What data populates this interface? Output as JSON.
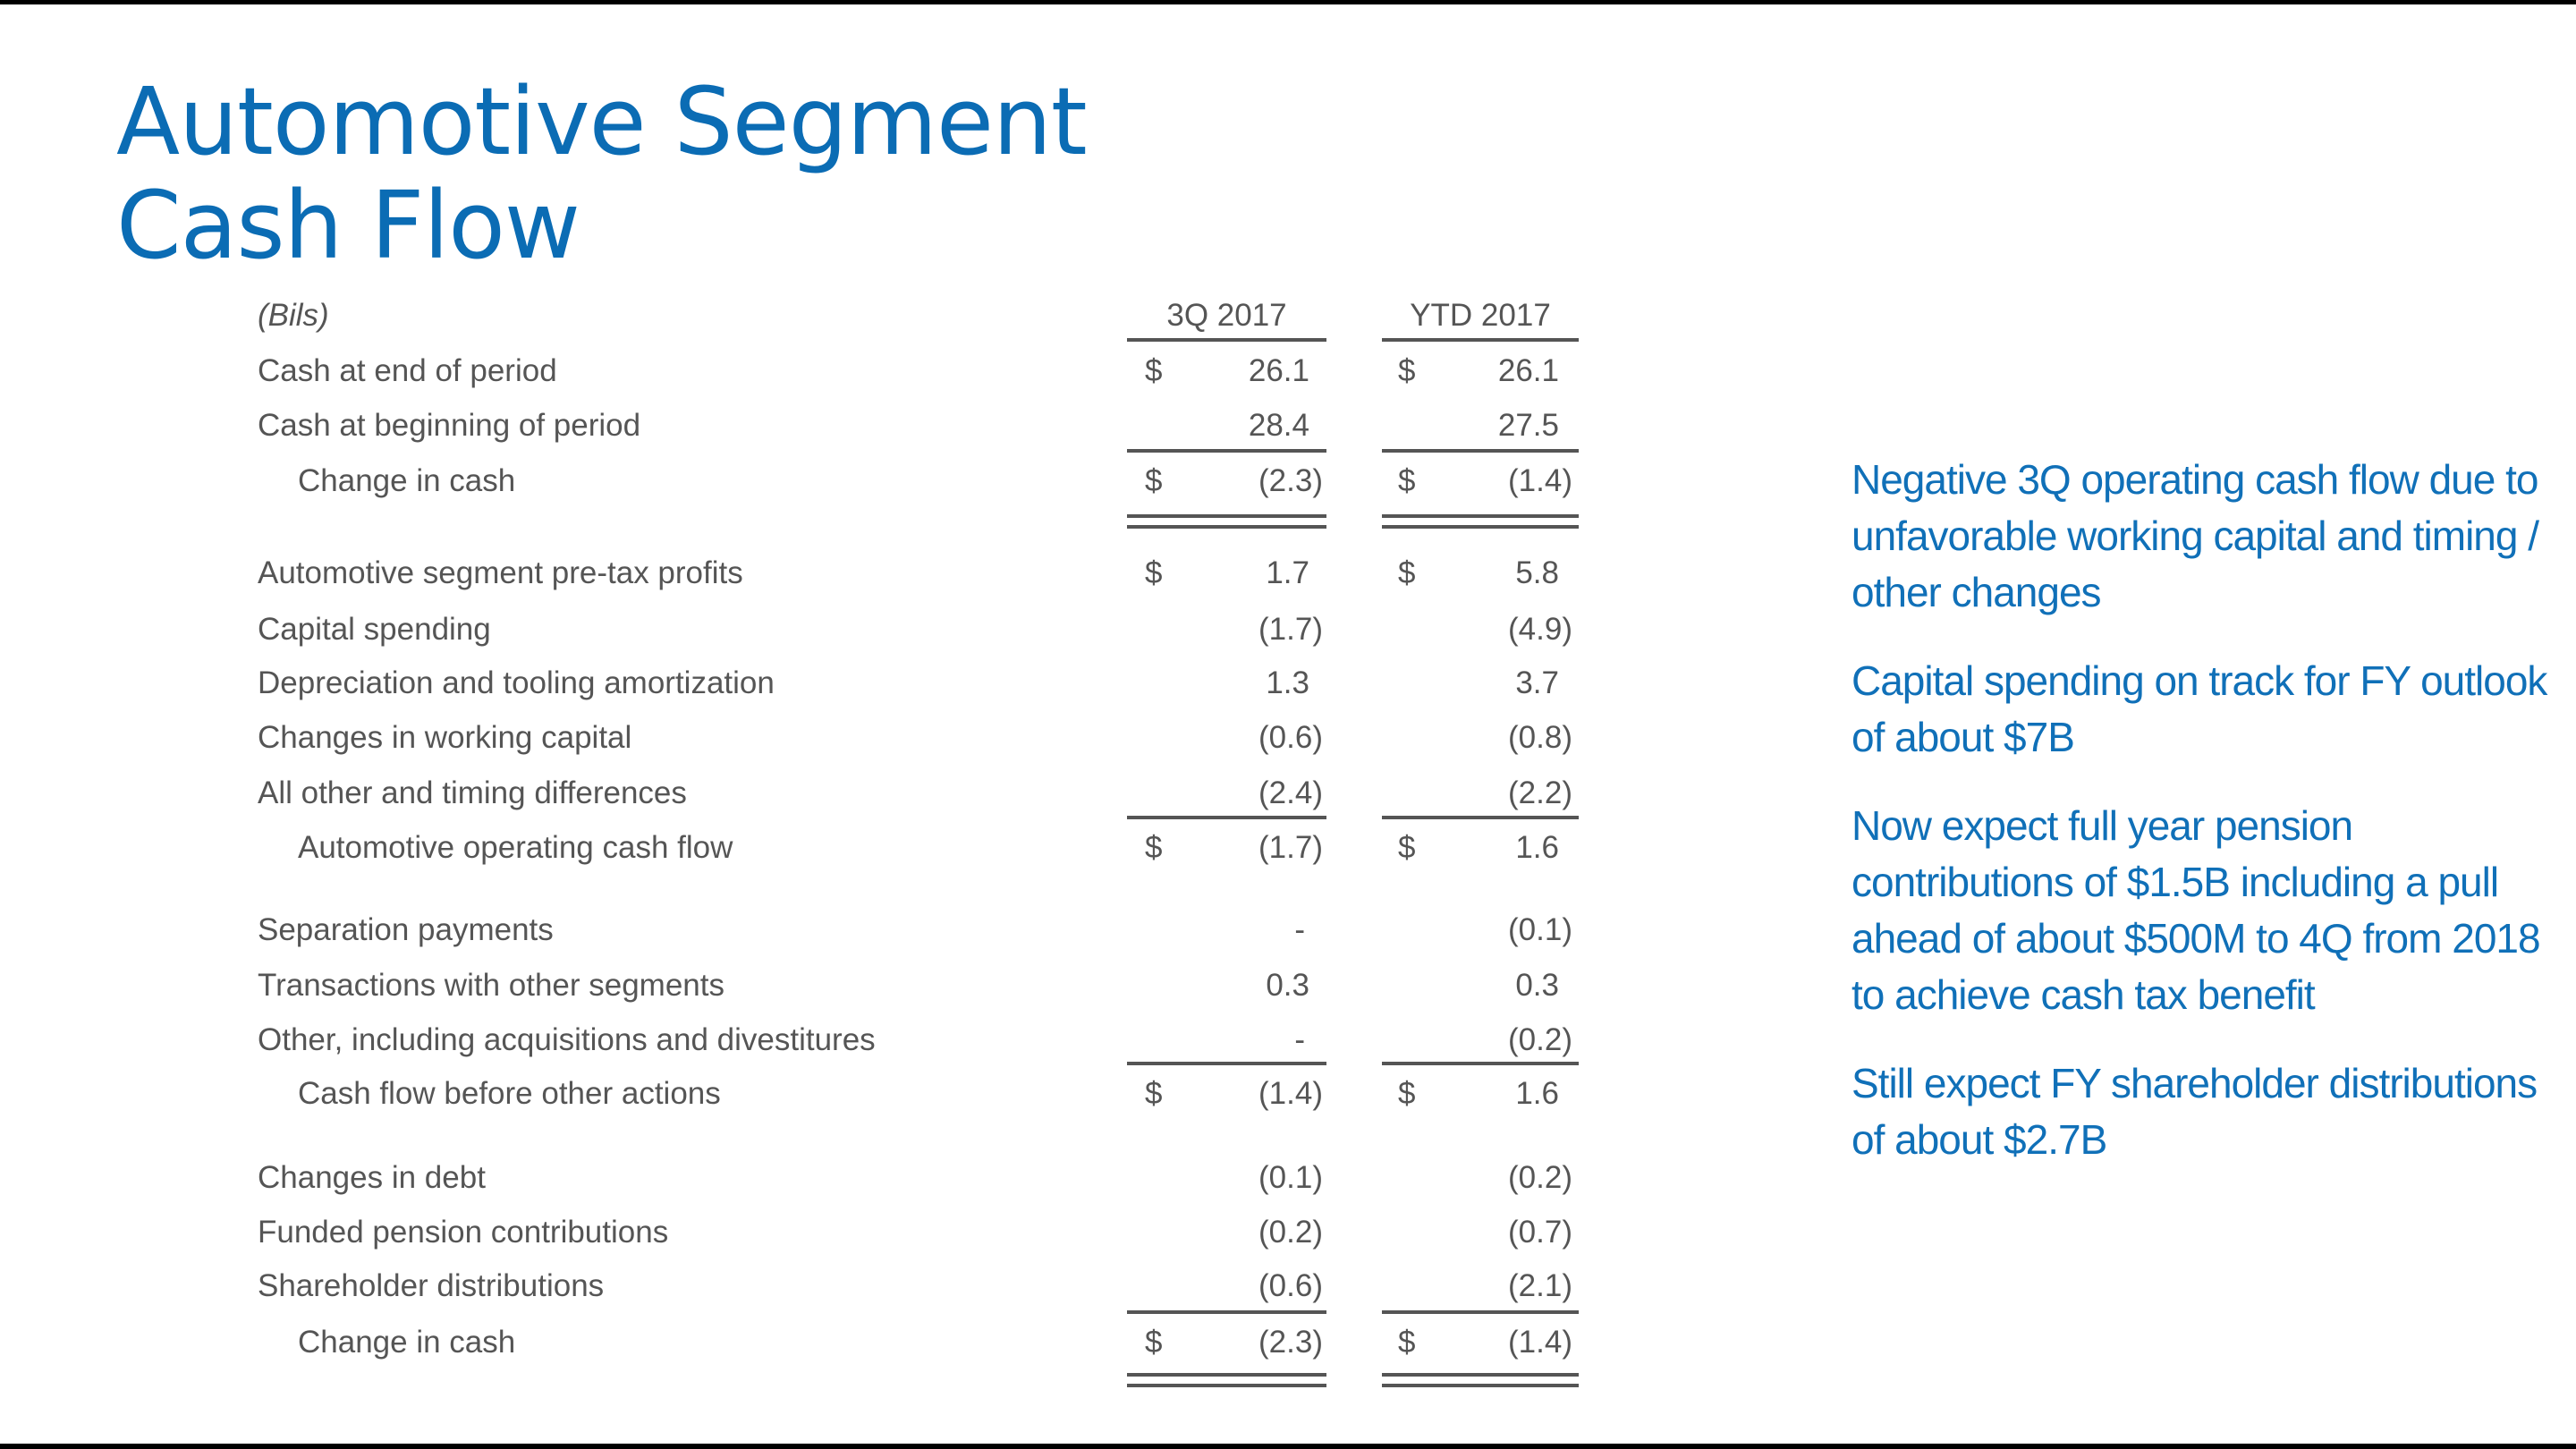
{
  "title_lines": [
    "Automotive Segment",
    "Cash Flow"
  ],
  "table": {
    "unit_label": "(Bils)",
    "columns": [
      "3Q 2017",
      "YTD 2017"
    ],
    "rows": [
      {
        "label": "Cash at end of period",
        "dollar": true,
        "values": [
          "26.1",
          "26.1"
        ]
      },
      {
        "label": "Cash at beginning of period",
        "dollar": false,
        "values": [
          "28.4",
          "27.5"
        ]
      },
      {
        "label": "Change in cash",
        "indent": true,
        "dollar": true,
        "values": [
          "(2.3)",
          "(1.4)"
        ]
      },
      {
        "label": "Automotive segment pre-tax profits",
        "dollar": true,
        "values": [
          "1.7",
          "5.8"
        ]
      },
      {
        "label": "Capital spending",
        "dollar": false,
        "values": [
          "(1.7)",
          "(4.9)"
        ]
      },
      {
        "label": "Depreciation and tooling amortization",
        "dollar": false,
        "values": [
          "1.3",
          "3.7"
        ]
      },
      {
        "label": "Changes in working capital",
        "dollar": false,
        "values": [
          "(0.6)",
          "(0.8)"
        ]
      },
      {
        "label": "All other and timing differences",
        "dollar": false,
        "values": [
          "(2.4)",
          "(2.2)"
        ]
      },
      {
        "label": "Automotive operating cash flow",
        "indent": true,
        "dollar": true,
        "values": [
          "(1.7)",
          "1.6"
        ]
      },
      {
        "label": "Separation payments",
        "dollar": false,
        "values": [
          "-",
          "(0.1)"
        ]
      },
      {
        "label": "Transactions with other segments",
        "dollar": false,
        "values": [
          "0.3",
          "0.3"
        ]
      },
      {
        "label": "Other, including acquisitions and divestitures",
        "dollar": false,
        "values": [
          "-",
          "(0.2)"
        ]
      },
      {
        "label": "Cash flow before other actions",
        "indent": true,
        "dollar": true,
        "values": [
          "(1.4)",
          "1.6"
        ]
      },
      {
        "label": "Changes in debt",
        "dollar": false,
        "values": [
          "(0.1)",
          "(0.2)"
        ]
      },
      {
        "label": "Funded pension contributions",
        "dollar": false,
        "values": [
          "(0.2)",
          "(0.7)"
        ]
      },
      {
        "label": "Shareholder distributions",
        "dollar": false,
        "values": [
          "(0.6)",
          "(2.1)"
        ]
      },
      {
        "label": "Change in cash",
        "indent": true,
        "dollar": true,
        "values": [
          "(2.3)",
          "(1.4)"
        ]
      }
    ],
    "currency_symbol": "$"
  },
  "notes": [
    "Negative 3Q operating cash flow due to unfavorable working capital and timing / other changes",
    "Capital spending on track for FY outlook of about $7B",
    "Now expect full year pension contributions of $1.5B including a pull ahead of about $500M to 4Q from 2018 to achieve cash tax benefit",
    "Still expect FY shareholder distributions of about $2.7B"
  ],
  "colors": {
    "title": "#0b6cb4",
    "notes": "#1070b8",
    "table_text": "#555555"
  }
}
